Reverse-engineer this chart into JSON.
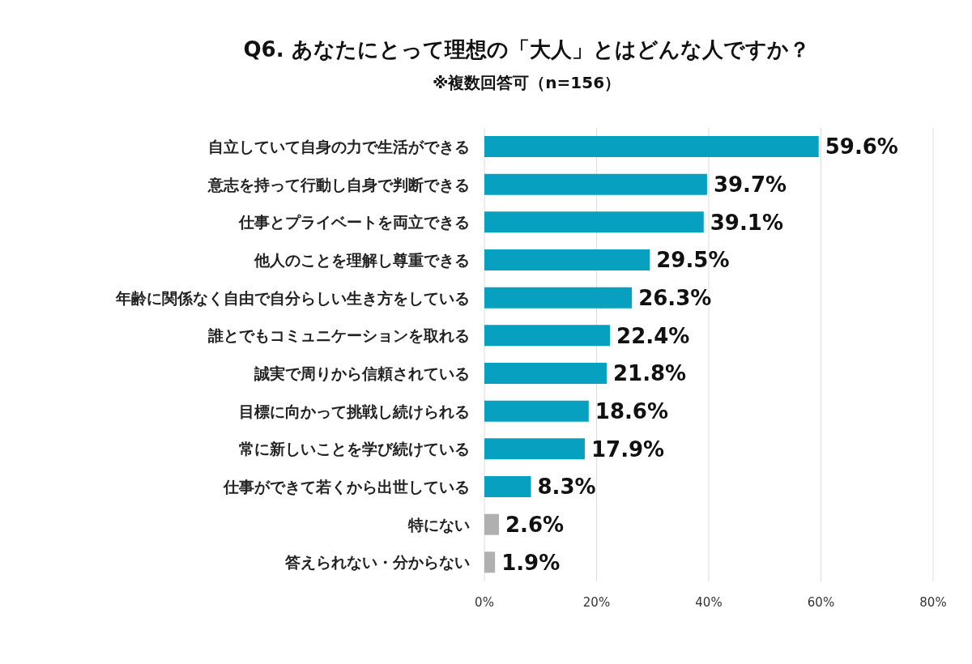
{
  "chart_data": {
    "type": "bar",
    "orientation": "horizontal",
    "title": "Q6. あなたにとって理想の「大人」とはどんな人ですか？",
    "subtitle": "※複数回答可（n=156）",
    "categories": [
      "自立していて自身の力で生活ができる",
      "意志を持って行動し自身で判断できる",
      "仕事とプライベートを両立できる",
      "他人のことを理解し尊重できる",
      "年齢に関係なく自由で自分らしい生き方をしている",
      "誰とでもコミュニケーションを取れる",
      "誠実で周りから信頼されている",
      "目標に向かって挑戦し続けられる",
      "常に新しいことを学び続けている",
      "仕事ができて若くから出世している",
      "特にない",
      "答えられない・分からない"
    ],
    "values": [
      59.6,
      39.7,
      39.1,
      29.5,
      26.3,
      22.4,
      21.8,
      18.6,
      17.9,
      8.3,
      2.6,
      1.9
    ],
    "value_labels": [
      "59.6%",
      "39.7%",
      "39.1%",
      "29.5%",
      "26.3%",
      "22.4%",
      "21.8%",
      "18.6%",
      "17.9%",
      "8.3%",
      "2.6%",
      "1.9%"
    ],
    "colors": [
      "#08a0c0",
      "#08a0c0",
      "#08a0c0",
      "#08a0c0",
      "#08a0c0",
      "#08a0c0",
      "#08a0c0",
      "#08a0c0",
      "#08a0c0",
      "#08a0c0",
      "#b0b0b0",
      "#b0b0b0"
    ],
    "xlim": [
      0,
      80
    ],
    "xticks": [
      {
        "value": 0,
        "label": "0%"
      },
      {
        "value": 20,
        "label": "20%"
      },
      {
        "value": 40,
        "label": "40%"
      },
      {
        "value": 60,
        "label": "60%"
      },
      {
        "value": 80,
        "label": "80%"
      }
    ],
    "grid": "x",
    "legend": false
  }
}
